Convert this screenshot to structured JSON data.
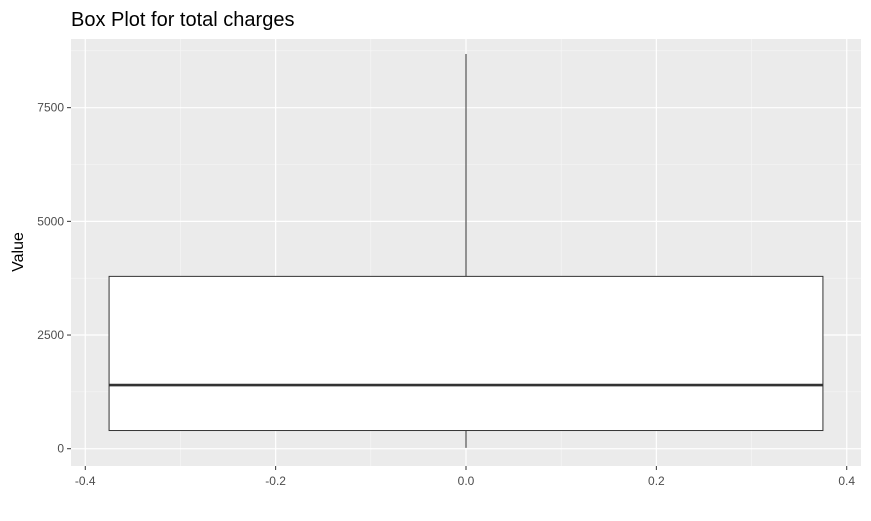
{
  "chart_data": {
    "type": "box",
    "title": "Box Plot for total charges",
    "xlabel": "",
    "ylabel": "Value",
    "xlim": [
      -0.415,
      0.415
    ],
    "ylim": [
      -380,
      9010
    ],
    "x_ticks": [
      -0.4,
      -0.2,
      0.0,
      0.2,
      0.4
    ],
    "x_tick_labels": [
      "-0.4",
      "-0.2",
      "0.0",
      "0.2",
      "0.4"
    ],
    "y_ticks": [
      0,
      2500,
      5000,
      7500
    ],
    "y_tick_labels": [
      "0",
      "2500",
      "5000",
      "7500"
    ],
    "grid": true,
    "box": {
      "x_center": 0,
      "x_left": -0.375,
      "x_right": 0.375,
      "min": 19,
      "q1": 400,
      "median": 1400,
      "q3": 3790,
      "max": 8680
    },
    "colors": {
      "panel_bg": "#ebebeb",
      "grid_major": "#ffffff",
      "grid_minor": "#f7f7f7",
      "box_fill": "#ffffff",
      "box_stroke": "#333333"
    }
  }
}
